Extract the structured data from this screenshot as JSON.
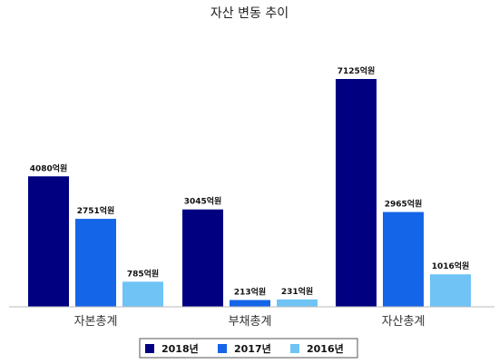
{
  "chart_data": {
    "type": "bar",
    "title": "자산 변동 추이",
    "categories": [
      "자본총계",
      "부채총계",
      "자산총계"
    ],
    "unit_suffix": "억원",
    "ylim": [
      0,
      7125
    ],
    "grid": false,
    "legend_position": "bottom",
    "series": [
      {
        "name": "2018년",
        "color": "#000080",
        "values": [
          4080,
          3045,
          7125
        ]
      },
      {
        "name": "2017년",
        "color": "#1565E8",
        "values": [
          2751,
          213,
          2965
        ]
      },
      {
        "name": "2016년",
        "color": "#6FC3F5",
        "values": [
          785,
          231,
          1016
        ]
      }
    ]
  }
}
